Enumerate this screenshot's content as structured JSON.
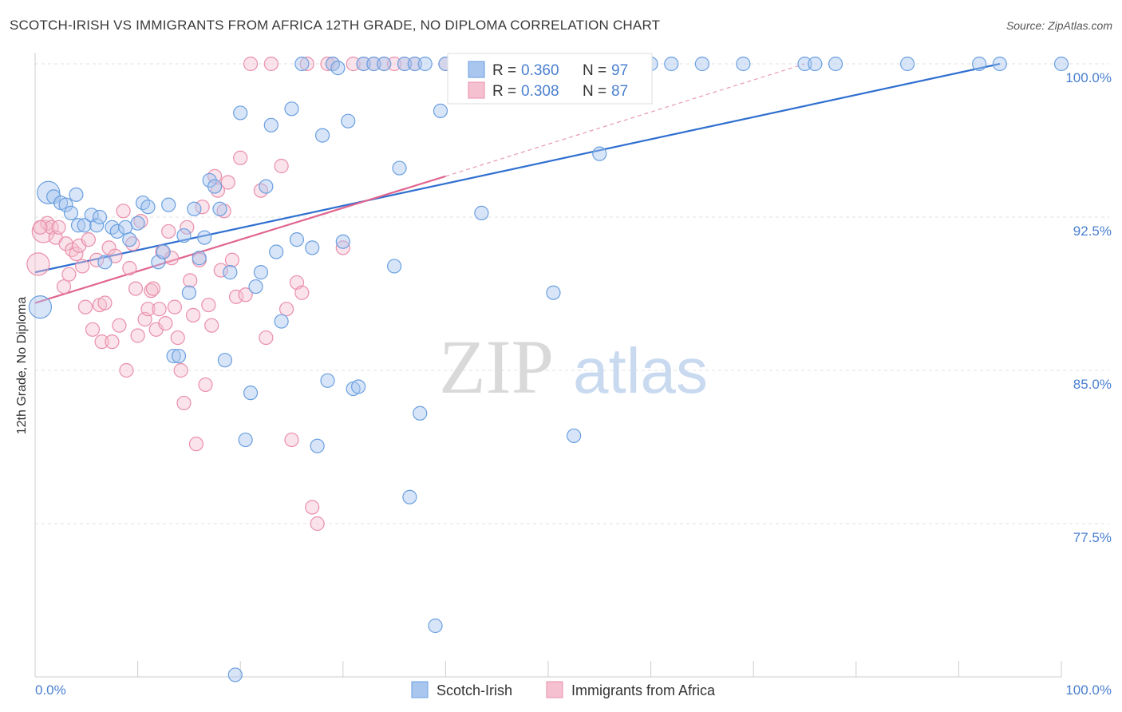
{
  "header": {
    "title": "SCOTCH-IRISH VS IMMIGRANTS FROM AFRICA 12TH GRADE, NO DIPLOMA CORRELATION CHART",
    "source": "Source: ZipAtlas.com"
  },
  "watermark": {
    "zip": "ZIP",
    "atlas": "atlas"
  },
  "chart_data": {
    "type": "scatter",
    "ylabel": "12th Grade, No Diploma",
    "xlim": [
      0,
      100
    ],
    "ylim": [
      70,
      100.5
    ],
    "x_tick_labels": {
      "min": "0.0%",
      "max": "100.0%"
    },
    "y_ticks": [
      {
        "value": 100.0,
        "label": "100.0%"
      },
      {
        "value": 92.5,
        "label": "92.5%"
      },
      {
        "value": 85.0,
        "label": "85.0%"
      },
      {
        "value": 77.5,
        "label": "77.5%"
      }
    ],
    "grid": "horizontal dashed",
    "legend": {
      "placement": "top-center",
      "rows": [
        {
          "r_label": "R = ",
          "r_value": "0.360",
          "n_label": "N = ",
          "n_value": "97"
        },
        {
          "r_label": "R = ",
          "r_value": "0.308",
          "n_label": "N = ",
          "n_value": "87"
        }
      ]
    },
    "series": [
      {
        "name": "Scotch-Irish",
        "color": "#6a9fe0",
        "fill": "#a9c6ef",
        "trend": {
          "x": [
            0,
            94
          ],
          "y": [
            89.8,
            100
          ]
        },
        "points": [
          [
            0.5,
            88.1
          ],
          [
            1.3,
            93.7
          ],
          [
            1.8,
            93.5
          ],
          [
            2.5,
            93.2
          ],
          [
            3,
            93.1
          ],
          [
            3.5,
            92.7
          ],
          [
            4,
            93.6
          ],
          [
            4.2,
            92.1
          ],
          [
            4.8,
            92.1
          ],
          [
            5.5,
            92.6
          ],
          [
            6,
            92.1
          ],
          [
            6.3,
            92.5
          ],
          [
            6.8,
            90.3
          ],
          [
            7.5,
            92.0
          ],
          [
            8,
            91.8
          ],
          [
            8.8,
            92.0
          ],
          [
            9.2,
            91.4
          ],
          [
            10,
            92.2
          ],
          [
            10.5,
            93.2
          ],
          [
            11,
            93.0
          ],
          [
            12,
            90.3
          ],
          [
            12.5,
            90.8
          ],
          [
            13,
            93.1
          ],
          [
            13.5,
            85.7
          ],
          [
            14,
            85.7
          ],
          [
            14.5,
            91.6
          ],
          [
            15,
            88.8
          ],
          [
            15.5,
            92.9
          ],
          [
            16,
            90.5
          ],
          [
            16.5,
            91.5
          ],
          [
            17,
            94.3
          ],
          [
            17.5,
            94.0
          ],
          [
            18,
            92.9
          ],
          [
            18.5,
            85.5
          ],
          [
            19,
            89.8
          ],
          [
            19.5,
            70.1
          ],
          [
            20,
            97.6
          ],
          [
            20.5,
            81.6
          ],
          [
            21,
            83.9
          ],
          [
            21.5,
            89.1
          ],
          [
            22,
            89.8
          ],
          [
            22.5,
            94.0
          ],
          [
            23,
            97.0
          ],
          [
            23.5,
            90.8
          ],
          [
            24,
            87.4
          ],
          [
            25,
            97.8
          ],
          [
            25.5,
            91.4
          ],
          [
            26,
            100
          ],
          [
            27,
            91.0
          ],
          [
            27.5,
            81.3
          ],
          [
            28,
            96.5
          ],
          [
            28.5,
            84.5
          ],
          [
            29,
            100
          ],
          [
            29.5,
            99.8
          ],
          [
            30,
            91.3
          ],
          [
            30.5,
            97.2
          ],
          [
            31,
            84.1
          ],
          [
            31.5,
            84.2
          ],
          [
            32,
            100
          ],
          [
            33,
            100
          ],
          [
            34,
            100
          ],
          [
            35,
            90.1
          ],
          [
            35.5,
            94.9
          ],
          [
            36,
            100
          ],
          [
            36.5,
            78.8
          ],
          [
            37,
            100
          ],
          [
            37.5,
            82.9
          ],
          [
            38,
            100
          ],
          [
            39,
            72.5
          ],
          [
            39.5,
            97.7
          ],
          [
            40,
            100
          ],
          [
            42,
            100
          ],
          [
            43,
            100
          ],
          [
            43.5,
            92.7
          ],
          [
            45,
            100
          ],
          [
            46,
            100
          ],
          [
            48,
            100
          ],
          [
            50,
            100
          ],
          [
            50.5,
            88.8
          ],
          [
            52,
            100
          ],
          [
            52.5,
            81.8
          ],
          [
            53,
            100
          ],
          [
            55,
            95.6
          ],
          [
            56,
            100
          ],
          [
            58,
            100
          ],
          [
            62,
            100
          ],
          [
            65,
            100
          ],
          [
            69,
            100
          ],
          [
            75,
            100
          ],
          [
            76,
            100
          ],
          [
            78,
            100
          ],
          [
            85,
            100
          ],
          [
            92,
            100
          ],
          [
            94,
            100
          ],
          [
            100,
            100
          ],
          [
            60,
            100
          ]
        ]
      },
      {
        "name": "Immigrants from Africa",
        "color": "#ea8fac",
        "fill": "#f5c0d0",
        "trend": {
          "x": [
            0,
            40
          ],
          "y": [
            88.3,
            94.5
          ]
        },
        "trend_dashed": {
          "x": [
            40,
            75
          ],
          "y": [
            94.5,
            100
          ]
        },
        "points": [
          [
            0.3,
            90.2
          ],
          [
            0.8,
            91.8
          ],
          [
            1.2,
            92.2
          ],
          [
            1.6,
            92.0
          ],
          [
            2,
            91.5
          ],
          [
            2.3,
            92.0
          ],
          [
            2.8,
            89.1
          ],
          [
            3,
            91.2
          ],
          [
            3.3,
            89.7
          ],
          [
            3.6,
            90.9
          ],
          [
            4,
            90.7
          ],
          [
            4.3,
            91.1
          ],
          [
            4.6,
            90.1
          ],
          [
            4.9,
            88.1
          ],
          [
            5.2,
            91.4
          ],
          [
            5.6,
            87.0
          ],
          [
            6,
            90.4
          ],
          [
            6.3,
            88.2
          ],
          [
            6.5,
            86.4
          ],
          [
            6.8,
            88.3
          ],
          [
            7.2,
            91.0
          ],
          [
            7.5,
            86.4
          ],
          [
            7.8,
            90.6
          ],
          [
            8.2,
            87.2
          ],
          [
            8.6,
            92.8
          ],
          [
            8.9,
            85.0
          ],
          [
            9.2,
            90.0
          ],
          [
            9.5,
            91.2
          ],
          [
            9.8,
            89.0
          ],
          [
            10,
            86.7
          ],
          [
            10.3,
            92.3
          ],
          [
            10.7,
            87.5
          ],
          [
            11,
            88.0
          ],
          [
            11.3,
            88.9
          ],
          [
            11.5,
            89.0
          ],
          [
            11.8,
            87.0
          ],
          [
            12.1,
            88.0
          ],
          [
            12.4,
            90.8
          ],
          [
            12.7,
            87.3
          ],
          [
            13,
            91.8
          ],
          [
            13.3,
            90.5
          ],
          [
            13.6,
            88.1
          ],
          [
            13.9,
            86.6
          ],
          [
            14.2,
            85.0
          ],
          [
            14.5,
            83.4
          ],
          [
            14.8,
            92.0
          ],
          [
            15.1,
            89.4
          ],
          [
            15.4,
            87.7
          ],
          [
            15.7,
            81.4
          ],
          [
            16,
            90.4
          ],
          [
            16.3,
            93.0
          ],
          [
            16.6,
            84.3
          ],
          [
            16.9,
            88.2
          ],
          [
            17.2,
            87.2
          ],
          [
            17.5,
            94.5
          ],
          [
            17.8,
            93.8
          ],
          [
            18.1,
            89.9
          ],
          [
            18.4,
            92.8
          ],
          [
            18.8,
            94.2
          ],
          [
            19.2,
            90.4
          ],
          [
            19.6,
            88.6
          ],
          [
            20,
            95.4
          ],
          [
            20.5,
            88.7
          ],
          [
            21,
            100
          ],
          [
            22,
            93.8
          ],
          [
            22.5,
            86.6
          ],
          [
            23,
            100
          ],
          [
            24,
            95.0
          ],
          [
            24.5,
            88.0
          ],
          [
            25,
            81.6
          ],
          [
            25.5,
            89.3
          ],
          [
            26,
            88.8
          ],
          [
            26.5,
            100
          ],
          [
            27,
            78.3
          ],
          [
            27.5,
            77.5
          ],
          [
            28.5,
            100
          ],
          [
            29,
            100
          ],
          [
            30,
            91.0
          ],
          [
            31,
            100
          ],
          [
            32,
            100
          ],
          [
            33,
            100
          ],
          [
            34,
            100
          ],
          [
            35,
            100
          ],
          [
            36,
            100
          ],
          [
            37,
            100
          ],
          [
            40,
            100
          ],
          [
            0.5,
            92.0
          ]
        ]
      }
    ]
  },
  "bottom_legend": {
    "items": [
      {
        "label": "Scotch-Irish"
      },
      {
        "label": "Immigrants from Africa"
      }
    ]
  }
}
